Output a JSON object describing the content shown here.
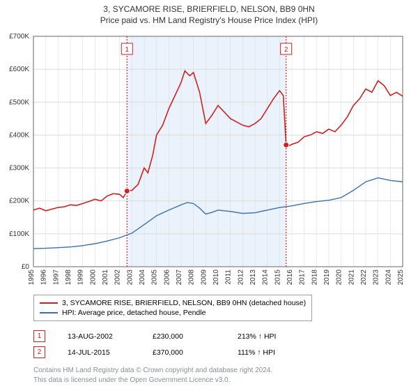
{
  "title_line1": "3, SYCAMORE RISE, BRIERFIELD, NELSON, BB9 0HN",
  "title_line2": "Price paid vs. HM Land Registry's House Price Index (HPI)",
  "chart": {
    "type": "line",
    "background_color": "#ffffff",
    "grid_color": "#dcdcdc",
    "axis_color": "#666666",
    "tick_font_size": 10,
    "x": {
      "labels": [
        "1995",
        "1996",
        "1997",
        "1998",
        "1999",
        "2000",
        "2001",
        "2002",
        "2003",
        "2004",
        "2005",
        "2006",
        "2007",
        "2008",
        "2009",
        "2010",
        "2011",
        "2012",
        "2013",
        "2014",
        "2015",
        "2016",
        "2017",
        "2018",
        "2019",
        "2020",
        "2021",
        "2022",
        "2023",
        "2024",
        "2025"
      ],
      "min": 1995,
      "max": 2025
    },
    "y": {
      "ticks": [
        0,
        100000,
        200000,
        300000,
        400000,
        500000,
        600000,
        700000
      ],
      "labels": [
        "£0",
        "£100K",
        "£200K",
        "£300K",
        "£400K",
        "£500K",
        "£600K",
        "£700K"
      ],
      "min": 0,
      "max": 700000
    },
    "highlight_band": {
      "from": 2002.6,
      "to": 2015.5,
      "fill": "#eaf2fb"
    },
    "series": [
      {
        "name": "price_paid",
        "color": "#d02020",
        "line_width": 1.6,
        "data": [
          [
            1995,
            172000
          ],
          [
            1995.5,
            178000
          ],
          [
            1996,
            170000
          ],
          [
            1996.5,
            175000
          ],
          [
            1997,
            180000
          ],
          [
            1997.5,
            182000
          ],
          [
            1998,
            188000
          ],
          [
            1998.5,
            186000
          ],
          [
            1999,
            192000
          ],
          [
            1999.5,
            198000
          ],
          [
            2000,
            205000
          ],
          [
            2000.5,
            200000
          ],
          [
            2001,
            215000
          ],
          [
            2001.5,
            222000
          ],
          [
            2002,
            220000
          ],
          [
            2002.3,
            210000
          ],
          [
            2002.6,
            230000
          ],
          [
            2003,
            232000
          ],
          [
            2003.5,
            250000
          ],
          [
            2004,
            300000
          ],
          [
            2004.3,
            285000
          ],
          [
            2004.7,
            340000
          ],
          [
            2005,
            400000
          ],
          [
            2005.5,
            430000
          ],
          [
            2006,
            480000
          ],
          [
            2006.5,
            520000
          ],
          [
            2007,
            560000
          ],
          [
            2007.3,
            595000
          ],
          [
            2007.7,
            580000
          ],
          [
            2008,
            590000
          ],
          [
            2008.5,
            530000
          ],
          [
            2009,
            435000
          ],
          [
            2009.5,
            460000
          ],
          [
            2010,
            490000
          ],
          [
            2010.5,
            470000
          ],
          [
            2011,
            450000
          ],
          [
            2011.5,
            440000
          ],
          [
            2012,
            430000
          ],
          [
            2012.5,
            425000
          ],
          [
            2013,
            435000
          ],
          [
            2013.5,
            450000
          ],
          [
            2014,
            480000
          ],
          [
            2014.5,
            510000
          ],
          [
            2015,
            535000
          ],
          [
            2015.3,
            520000
          ],
          [
            2015.53,
            370000
          ],
          [
            2015.8,
            368000
          ],
          [
            2016,
            372000
          ],
          [
            2016.5,
            378000
          ],
          [
            2017,
            395000
          ],
          [
            2017.5,
            400000
          ],
          [
            2018,
            410000
          ],
          [
            2018.5,
            405000
          ],
          [
            2019,
            418000
          ],
          [
            2019.5,
            410000
          ],
          [
            2020,
            430000
          ],
          [
            2020.5,
            455000
          ],
          [
            2021,
            490000
          ],
          [
            2021.5,
            510000
          ],
          [
            2022,
            540000
          ],
          [
            2022.5,
            530000
          ],
          [
            2023,
            565000
          ],
          [
            2023.5,
            550000
          ],
          [
            2024,
            520000
          ],
          [
            2024.5,
            530000
          ],
          [
            2025,
            518000
          ]
        ],
        "markers": [
          {
            "label": "1",
            "x": 2002.6,
            "y": 230000,
            "sale": {
              "date": "13-AUG-2002",
              "price": "£230,000",
              "hpi_rel": "213% ↑ HPI"
            }
          },
          {
            "label": "2",
            "x": 2015.53,
            "y": 370000,
            "sale": {
              "date": "14-JUL-2015",
              "price": "£370,000",
              "hpi_rel": "111% ↑ HPI"
            }
          }
        ]
      },
      {
        "name": "hpi",
        "color": "#3b6fb6",
        "line_width": 1.4,
        "data": [
          [
            1995,
            55000
          ],
          [
            1996,
            56000
          ],
          [
            1997,
            58000
          ],
          [
            1998,
            60000
          ],
          [
            1999,
            64000
          ],
          [
            2000,
            70000
          ],
          [
            2001,
            78000
          ],
          [
            2002,
            88000
          ],
          [
            2003,
            102000
          ],
          [
            2004,
            128000
          ],
          [
            2005,
            155000
          ],
          [
            2006,
            172000
          ],
          [
            2007,
            188000
          ],
          [
            2007.5,
            195000
          ],
          [
            2008,
            192000
          ],
          [
            2008.5,
            178000
          ],
          [
            2009,
            160000
          ],
          [
            2009.5,
            165000
          ],
          [
            2010,
            172000
          ],
          [
            2011,
            168000
          ],
          [
            2012,
            162000
          ],
          [
            2013,
            164000
          ],
          [
            2014,
            172000
          ],
          [
            2015,
            180000
          ],
          [
            2016,
            185000
          ],
          [
            2017,
            192000
          ],
          [
            2018,
            198000
          ],
          [
            2019,
            202000
          ],
          [
            2020,
            210000
          ],
          [
            2021,
            232000
          ],
          [
            2022,
            258000
          ],
          [
            2023,
            270000
          ],
          [
            2024,
            262000
          ],
          [
            2025,
            258000
          ]
        ]
      }
    ]
  },
  "legend": {
    "items": [
      {
        "color": "#d02020",
        "label": "3, SYCAMORE RISE, BRIERFIELD, NELSON, BB9 0HN (detached house)"
      },
      {
        "color": "#3b6fb6",
        "label": "HPI: Average price, detached house, Pendle"
      }
    ]
  },
  "attribution": {
    "l1": "Contains HM Land Registry data © Crown copyright and database right 2024.",
    "l2": "This data is licensed under the Open Government Licence v3.0."
  }
}
